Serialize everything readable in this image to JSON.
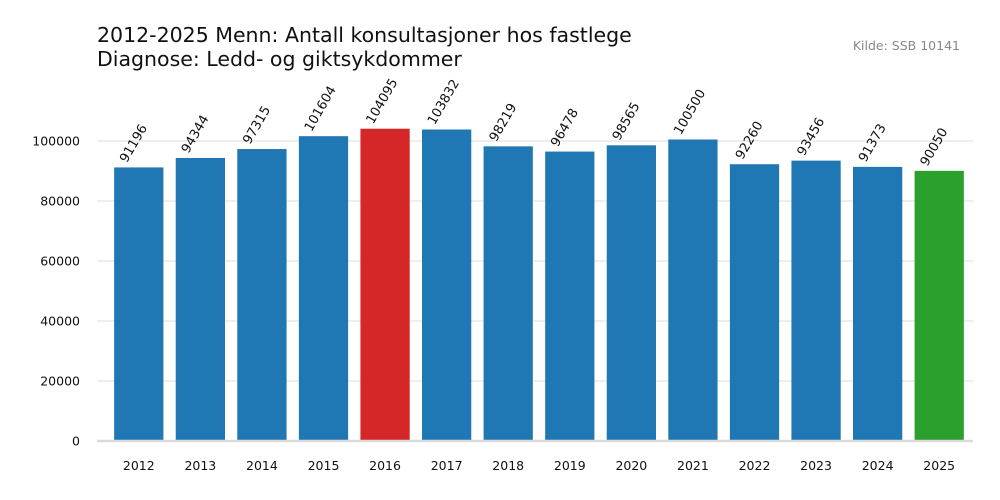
{
  "title_line1": "2012-2025 Menn: Antall konsultasjoner hos fastlege",
  "title_line2": "Diagnose: Ledd- og giktsykdommer",
  "source": "Kilde: SSB 10141",
  "colors": {
    "default": "#1f77b4",
    "max": "#d62728",
    "last": "#2ca02c",
    "grid": "#e8e8e8",
    "axis": "#d9d9d9"
  },
  "chart_data": {
    "type": "bar",
    "categories": [
      "2012",
      "2013",
      "2014",
      "2015",
      "2016",
      "2017",
      "2018",
      "2019",
      "2020",
      "2021",
      "2022",
      "2023",
      "2024",
      "2025"
    ],
    "values": [
      91196,
      94344,
      97315,
      101604,
      104095,
      103832,
      98219,
      96478,
      98565,
      100500,
      92260,
      93456,
      91373,
      90050
    ],
    "yticks": [
      0,
      20000,
      40000,
      60000,
      80000,
      100000
    ],
    "ylim": [
      0,
      110000
    ],
    "highlight": {
      "2016": "max",
      "2025": "last"
    },
    "grid": true,
    "xlabel": "",
    "ylabel": ""
  }
}
